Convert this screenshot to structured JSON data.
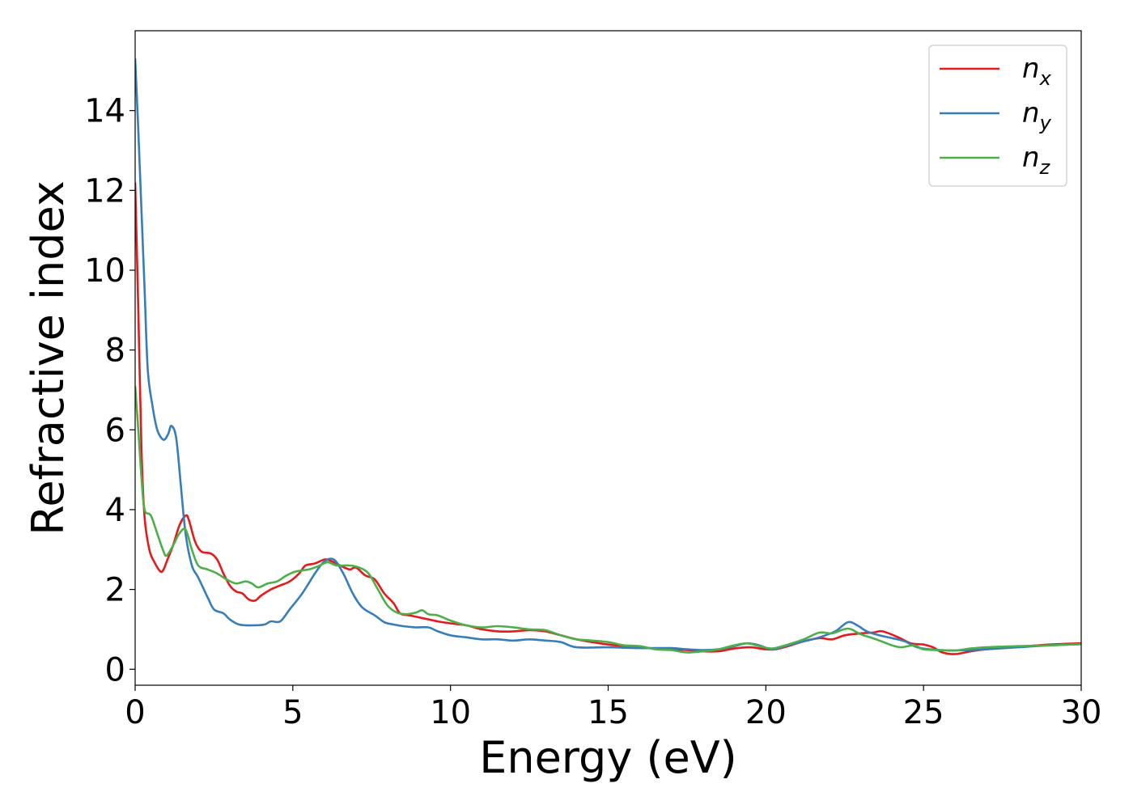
{
  "chart_data": {
    "type": "line",
    "title": "",
    "xlabel": "Energy (eV)",
    "ylabel": "Refractive index",
    "xlim": [
      0,
      30
    ],
    "ylim": [
      -0.4,
      16
    ],
    "grid": false,
    "legend_position": "top-right",
    "x_ticks": [
      0,
      5,
      10,
      15,
      20,
      25,
      30
    ],
    "x_tick_labels": [
      "0",
      "5",
      "10",
      "15",
      "20",
      "25",
      "30"
    ],
    "y_ticks": [
      0,
      2,
      4,
      6,
      8,
      10,
      12,
      14
    ],
    "y_tick_labels": [
      "0",
      "2",
      "4",
      "6",
      "8",
      "10",
      "12",
      "14"
    ],
    "series": [
      {
        "name": "n",
        "subscript": "x",
        "color": "#e41a1c",
        "points": [
          [
            0,
            12.2
          ],
          [
            0.1,
            9.0
          ],
          [
            0.2,
            5.5
          ],
          [
            0.3,
            3.8
          ],
          [
            0.45,
            3.0
          ],
          [
            0.6,
            2.7
          ],
          [
            0.8,
            2.45
          ],
          [
            0.9,
            2.5
          ],
          [
            1.0,
            2.7
          ],
          [
            1.2,
            3.1
          ],
          [
            1.4,
            3.6
          ],
          [
            1.6,
            3.85
          ],
          [
            1.7,
            3.75
          ],
          [
            1.9,
            3.2
          ],
          [
            2.1,
            2.95
          ],
          [
            2.4,
            2.9
          ],
          [
            2.6,
            2.75
          ],
          [
            2.8,
            2.4
          ],
          [
            3.0,
            2.1
          ],
          [
            3.2,
            1.95
          ],
          [
            3.4,
            1.9
          ],
          [
            3.6,
            1.75
          ],
          [
            3.8,
            1.72
          ],
          [
            4.0,
            1.85
          ],
          [
            4.3,
            2.0
          ],
          [
            4.6,
            2.1
          ],
          [
            4.9,
            2.2
          ],
          [
            5.2,
            2.4
          ],
          [
            5.4,
            2.6
          ],
          [
            5.7,
            2.65
          ],
          [
            6.0,
            2.75
          ],
          [
            6.2,
            2.72
          ],
          [
            6.5,
            2.6
          ],
          [
            6.8,
            2.5
          ],
          [
            7.0,
            2.55
          ],
          [
            7.3,
            2.35
          ],
          [
            7.6,
            2.25
          ],
          [
            7.9,
            1.9
          ],
          [
            8.2,
            1.65
          ],
          [
            8.4,
            1.4
          ],
          [
            8.7,
            1.35
          ],
          [
            9.0,
            1.3
          ],
          [
            9.3,
            1.25
          ],
          [
            9.6,
            1.2
          ],
          [
            10.0,
            1.15
          ],
          [
            10.5,
            1.1
          ],
          [
            11.0,
            1.0
          ],
          [
            11.5,
            0.95
          ],
          [
            12.0,
            0.95
          ],
          [
            12.5,
            0.98
          ],
          [
            13.0,
            0.95
          ],
          [
            13.5,
            0.85
          ],
          [
            14.0,
            0.75
          ],
          [
            14.5,
            0.68
          ],
          [
            15.0,
            0.62
          ],
          [
            15.5,
            0.58
          ],
          [
            16.0,
            0.55
          ],
          [
            16.5,
            0.52
          ],
          [
            17.0,
            0.5
          ],
          [
            17.5,
            0.48
          ],
          [
            18.0,
            0.45
          ],
          [
            18.5,
            0.45
          ],
          [
            19.0,
            0.52
          ],
          [
            19.5,
            0.55
          ],
          [
            20.0,
            0.5
          ],
          [
            20.3,
            0.5
          ],
          [
            20.7,
            0.58
          ],
          [
            21.2,
            0.7
          ],
          [
            21.7,
            0.78
          ],
          [
            22.1,
            0.75
          ],
          [
            22.5,
            0.85
          ],
          [
            23.0,
            0.9
          ],
          [
            23.4,
            0.92
          ],
          [
            23.7,
            0.95
          ],
          [
            24.2,
            0.8
          ],
          [
            24.6,
            0.65
          ],
          [
            25.0,
            0.62
          ],
          [
            25.3,
            0.55
          ],
          [
            25.6,
            0.42
          ],
          [
            26.0,
            0.38
          ],
          [
            26.5,
            0.45
          ],
          [
            27.0,
            0.5
          ],
          [
            28.0,
            0.56
          ],
          [
            29.0,
            0.62
          ],
          [
            30.0,
            0.65
          ]
        ]
      },
      {
        "name": "n",
        "subscript": "y",
        "color": "#377eb8",
        "points": [
          [
            0,
            15.3
          ],
          [
            0.1,
            13.5
          ],
          [
            0.2,
            11.5
          ],
          [
            0.3,
            9.5
          ],
          [
            0.4,
            7.5
          ],
          [
            0.55,
            6.6
          ],
          [
            0.7,
            6.0
          ],
          [
            0.9,
            5.75
          ],
          [
            1.05,
            5.9
          ],
          [
            1.15,
            6.1
          ],
          [
            1.3,
            5.8
          ],
          [
            1.45,
            4.6
          ],
          [
            1.6,
            3.4
          ],
          [
            1.8,
            2.6
          ],
          [
            2.0,
            2.3
          ],
          [
            2.3,
            1.8
          ],
          [
            2.5,
            1.5
          ],
          [
            2.8,
            1.4
          ],
          [
            3.0,
            1.25
          ],
          [
            3.3,
            1.12
          ],
          [
            3.7,
            1.1
          ],
          [
            4.1,
            1.12
          ],
          [
            4.3,
            1.2
          ],
          [
            4.6,
            1.2
          ],
          [
            4.9,
            1.5
          ],
          [
            5.3,
            1.9
          ],
          [
            5.7,
            2.4
          ],
          [
            6.0,
            2.7
          ],
          [
            6.3,
            2.75
          ],
          [
            6.6,
            2.4
          ],
          [
            6.9,
            1.9
          ],
          [
            7.2,
            1.55
          ],
          [
            7.6,
            1.35
          ],
          [
            7.9,
            1.18
          ],
          [
            8.2,
            1.12
          ],
          [
            8.5,
            1.08
          ],
          [
            8.9,
            1.05
          ],
          [
            9.3,
            1.05
          ],
          [
            9.6,
            0.95
          ],
          [
            10.0,
            0.85
          ],
          [
            10.5,
            0.8
          ],
          [
            11.0,
            0.75
          ],
          [
            11.5,
            0.75
          ],
          [
            12.0,
            0.72
          ],
          [
            12.5,
            0.75
          ],
          [
            13.0,
            0.72
          ],
          [
            13.5,
            0.68
          ],
          [
            14.0,
            0.55
          ],
          [
            15.0,
            0.55
          ],
          [
            16.0,
            0.53
          ],
          [
            17.0,
            0.53
          ],
          [
            17.5,
            0.5
          ],
          [
            18.0,
            0.48
          ],
          [
            18.5,
            0.5
          ],
          [
            19.0,
            0.58
          ],
          [
            19.4,
            0.65
          ],
          [
            19.8,
            0.6
          ],
          [
            20.2,
            0.5
          ],
          [
            20.7,
            0.6
          ],
          [
            21.2,
            0.7
          ],
          [
            21.7,
            0.8
          ],
          [
            22.2,
            0.95
          ],
          [
            22.6,
            1.18
          ],
          [
            22.9,
            1.1
          ],
          [
            23.2,
            0.95
          ],
          [
            23.6,
            0.85
          ],
          [
            24.0,
            0.78
          ],
          [
            24.4,
            0.7
          ],
          [
            24.8,
            0.55
          ],
          [
            25.2,
            0.5
          ],
          [
            25.8,
            0.47
          ],
          [
            26.5,
            0.48
          ],
          [
            27.0,
            0.5
          ],
          [
            28.0,
            0.55
          ],
          [
            29.0,
            0.6
          ],
          [
            30.0,
            0.63
          ]
        ]
      },
      {
        "name": "n",
        "subscript": "z",
        "color": "#4daf4a",
        "points": [
          [
            0,
            7.1
          ],
          [
            0.1,
            6.0
          ],
          [
            0.2,
            4.8
          ],
          [
            0.3,
            4.0
          ],
          [
            0.5,
            3.85
          ],
          [
            0.7,
            3.4
          ],
          [
            0.9,
            2.95
          ],
          [
            1.0,
            2.85
          ],
          [
            1.2,
            3.1
          ],
          [
            1.4,
            3.4
          ],
          [
            1.6,
            3.5
          ],
          [
            1.8,
            3.0
          ],
          [
            2.0,
            2.6
          ],
          [
            2.3,
            2.5
          ],
          [
            2.6,
            2.4
          ],
          [
            2.9,
            2.25
          ],
          [
            3.2,
            2.15
          ],
          [
            3.5,
            2.2
          ],
          [
            3.7,
            2.15
          ],
          [
            3.9,
            2.05
          ],
          [
            4.2,
            2.15
          ],
          [
            4.5,
            2.2
          ],
          [
            4.8,
            2.35
          ],
          [
            5.1,
            2.45
          ],
          [
            5.5,
            2.5
          ],
          [
            5.8,
            2.58
          ],
          [
            6.1,
            2.68
          ],
          [
            6.4,
            2.6
          ],
          [
            6.8,
            2.6
          ],
          [
            7.1,
            2.55
          ],
          [
            7.4,
            2.4
          ],
          [
            7.7,
            2.0
          ],
          [
            8.0,
            1.6
          ],
          [
            8.3,
            1.42
          ],
          [
            8.6,
            1.38
          ],
          [
            8.9,
            1.42
          ],
          [
            9.1,
            1.48
          ],
          [
            9.3,
            1.38
          ],
          [
            9.6,
            1.35
          ],
          [
            10.0,
            1.22
          ],
          [
            10.5,
            1.1
          ],
          [
            11.0,
            1.05
          ],
          [
            11.5,
            1.08
          ],
          [
            12.0,
            1.05
          ],
          [
            12.5,
            1.0
          ],
          [
            13.0,
            0.98
          ],
          [
            13.5,
            0.85
          ],
          [
            14.0,
            0.75
          ],
          [
            14.5,
            0.72
          ],
          [
            15.0,
            0.68
          ],
          [
            15.5,
            0.6
          ],
          [
            16.0,
            0.58
          ],
          [
            16.5,
            0.5
          ],
          [
            17.0,
            0.48
          ],
          [
            17.5,
            0.42
          ],
          [
            18.0,
            0.45
          ],
          [
            18.5,
            0.5
          ],
          [
            19.0,
            0.6
          ],
          [
            19.4,
            0.65
          ],
          [
            19.8,
            0.58
          ],
          [
            20.2,
            0.52
          ],
          [
            20.7,
            0.62
          ],
          [
            21.2,
            0.75
          ],
          [
            21.7,
            0.92
          ],
          [
            22.1,
            0.9
          ],
          [
            22.6,
            1.02
          ],
          [
            23.0,
            0.88
          ],
          [
            23.5,
            0.75
          ],
          [
            24.0,
            0.6
          ],
          [
            24.3,
            0.55
          ],
          [
            24.7,
            0.6
          ],
          [
            25.0,
            0.5
          ],
          [
            25.5,
            0.48
          ],
          [
            26.0,
            0.47
          ],
          [
            26.5,
            0.52
          ],
          [
            27.0,
            0.55
          ],
          [
            28.0,
            0.58
          ],
          [
            29.0,
            0.6
          ],
          [
            30.0,
            0.63
          ]
        ]
      }
    ]
  }
}
